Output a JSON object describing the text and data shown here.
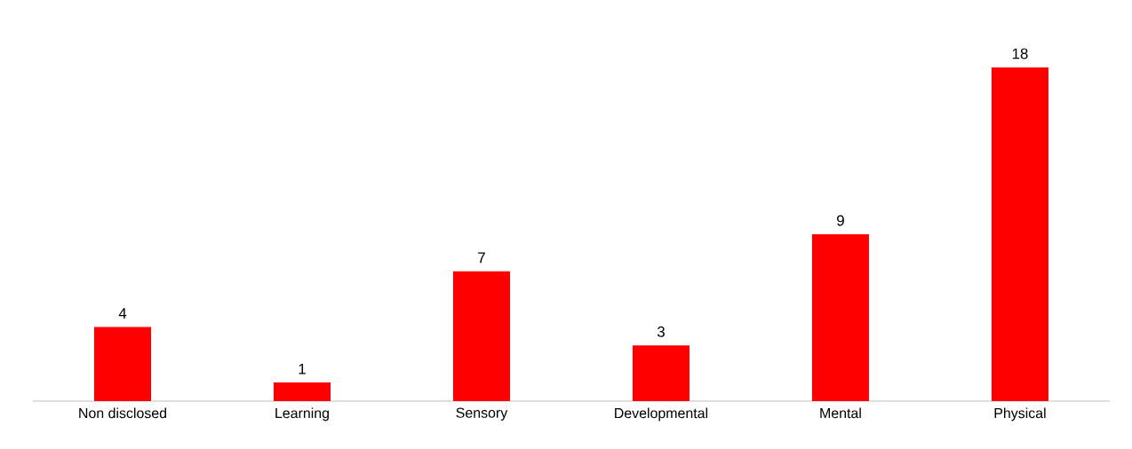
{
  "chart_data": {
    "type": "bar",
    "categories": [
      "Non disclosed",
      "Learning",
      "Sensory",
      "Developmental",
      "Mental",
      "Physical"
    ],
    "values": [
      4,
      1,
      7,
      3,
      9,
      18
    ],
    "color": "#ff0000",
    "data_labels": true,
    "tick_labels": "x"
  }
}
